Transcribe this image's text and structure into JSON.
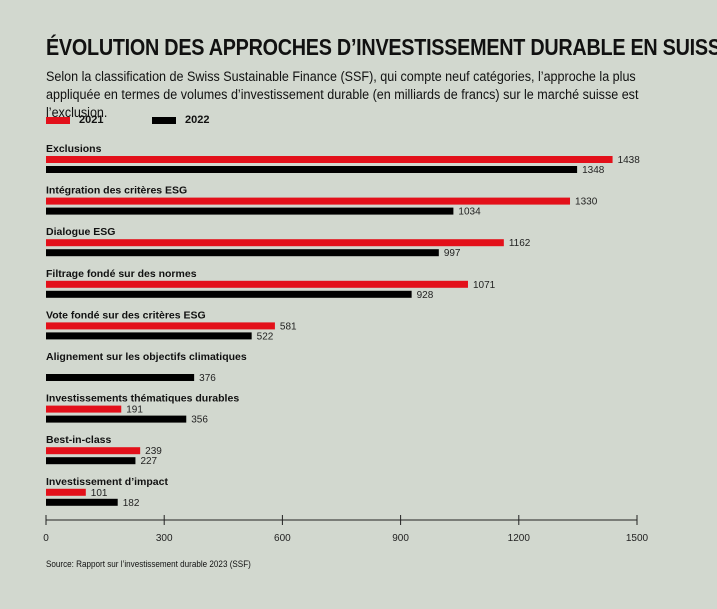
{
  "title": "ÉVOLUTION DES APPROCHES D’INVESTISSEMENT DURABLE EN SUISSE",
  "subtitle": "Selon la classification de Swiss Sustainable Finance (SSF), qui compte neuf catégories, l’approche la plus appliquée en termes de volumes d’investissement durable (en milliards de francs) sur le marché suisse est l’exclusion.",
  "source": "Source: Rapport sur l’investissement durable 2023 (SSF)",
  "colors": {
    "series_2021": "#e3101a",
    "series_2022": "#000000",
    "background": "#d2d8cf"
  },
  "chart_data": {
    "type": "bar",
    "orientation": "horizontal",
    "categories": [
      "Exclusions",
      "Intégration des critères ESG",
      "Dialogue ESG",
      "Filtrage fondé sur des normes",
      "Vote fondé sur des critères ESG",
      "Alignement sur les objectifs climatiques",
      "Investissements thématiques durables",
      "Best-in-class",
      "Investissement d’impact"
    ],
    "series": [
      {
        "name": "2021",
        "values": [
          1438,
          1330,
          1162,
          1071,
          581,
          null,
          191,
          239,
          101
        ]
      },
      {
        "name": "2022",
        "values": [
          1348,
          1034,
          997,
          928,
          522,
          376,
          356,
          227,
          182
        ]
      }
    ],
    "xlim": [
      0,
      1500
    ],
    "xticks": [
      0,
      300,
      600,
      900,
      1200,
      1500
    ],
    "legend": "top-left"
  }
}
